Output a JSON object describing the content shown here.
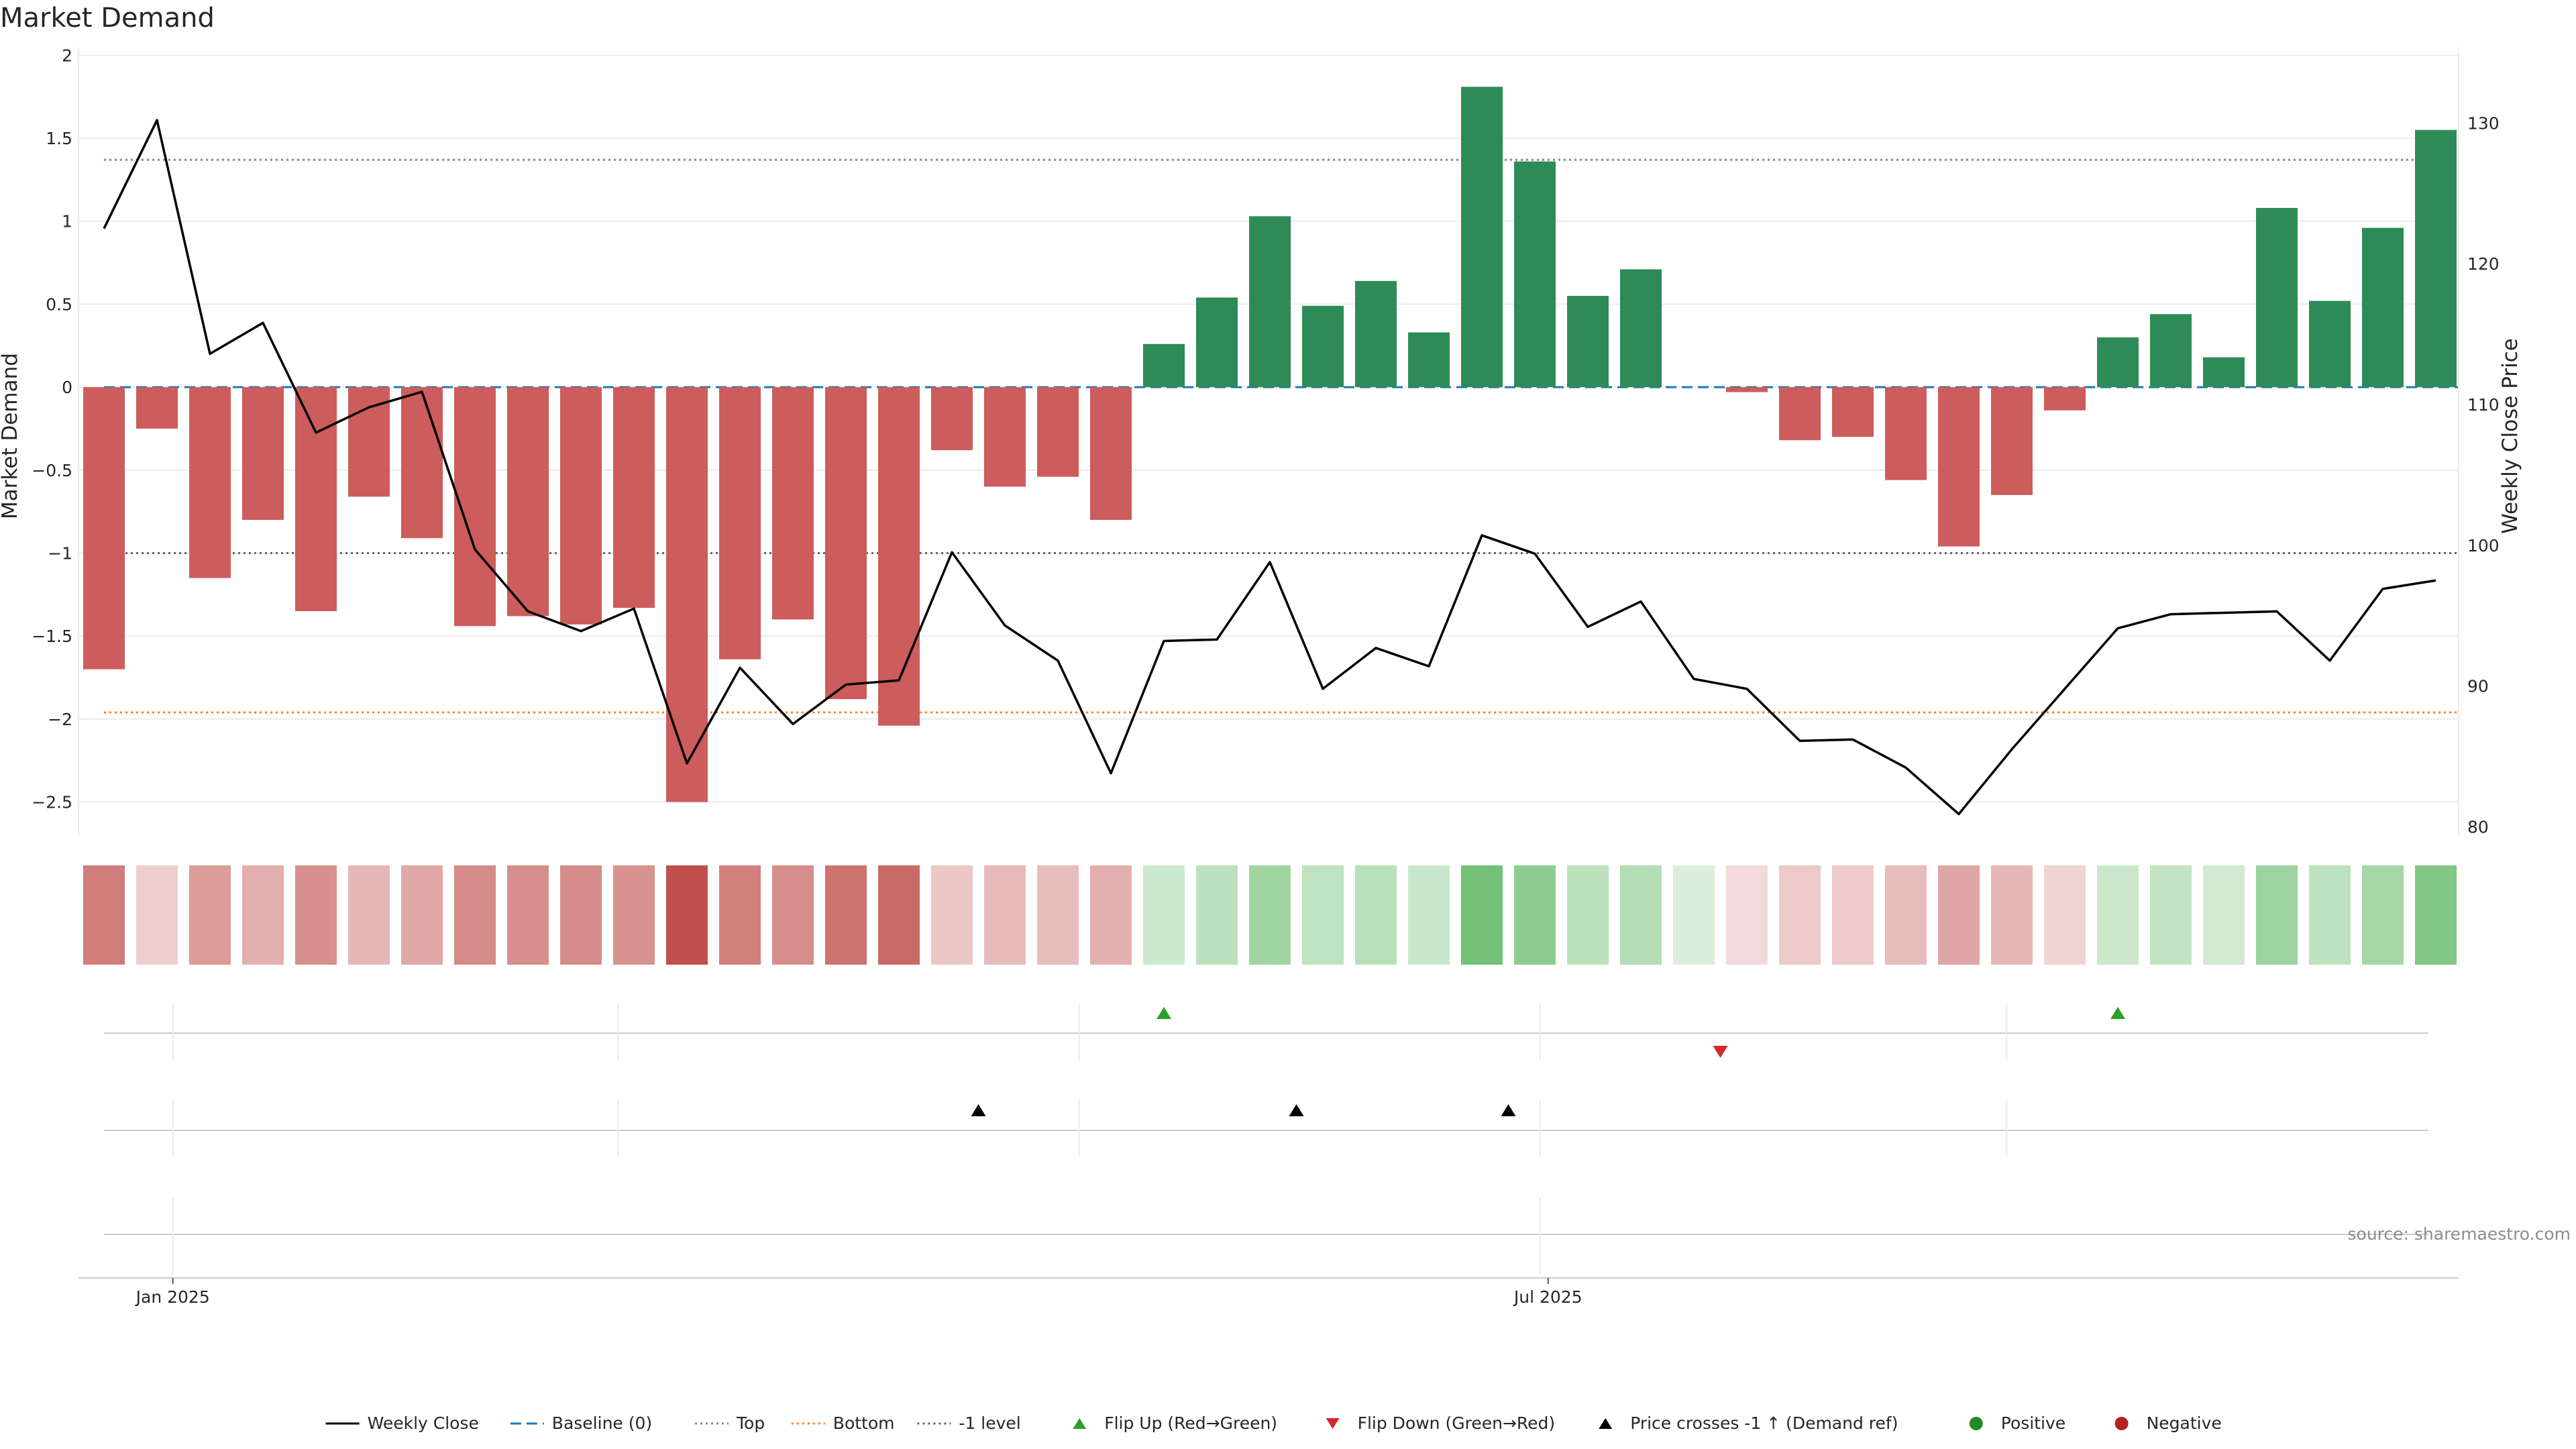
{
  "chart_data": {
    "type": "bar",
    "title": "Market Demand",
    "ylabel": "Market Demand",
    "y2label": "Weekly Close Price",
    "ylim": [
      -2.7,
      2.05
    ],
    "y2lim": [
      79.4,
      135.4
    ],
    "yticks": [
      2,
      1.5,
      1,
      0.5,
      0,
      -0.5,
      -1,
      -1.5,
      -2,
      -2.5
    ],
    "ytick_labels": [
      "2",
      "1.5",
      "1",
      "0.5",
      "0",
      "−0.5",
      "−1",
      "−1.5",
      "−2",
      "−2.5"
    ],
    "y2ticks": [
      130,
      120,
      110,
      100,
      90,
      80
    ],
    "xtick_labels": [
      {
        "label": "Jan 2025",
        "week": 1.3
      },
      {
        "label": "Jul 2025",
        "week": 27.25
      }
    ],
    "reference_lines": {
      "baseline": 0,
      "top": 1.37,
      "bottom": -1.96,
      "minus_one": -1
    },
    "colors": {
      "positive": "#2e8b57",
      "negative": "#cd5c5c",
      "price": "#000000",
      "baseline": "#1f77b4",
      "top": "#7f7fbf",
      "bottom": "#ff7f0e",
      "minus_one": "#666666",
      "flip_up": "#2ca02c",
      "flip_down": "#d62728",
      "cross": "#000000",
      "grid": "#ebebeb",
      "strip_axis": "#cccccc"
    },
    "series": [
      {
        "name": "Market Demand",
        "values": [
          -1.7,
          -0.25,
          -1.15,
          -0.8,
          -1.35,
          -0.66,
          -0.91,
          -1.44,
          -1.38,
          -1.43,
          -1.33,
          -2.5,
          -1.64,
          -1.4,
          -1.88,
          -2.04,
          -0.38,
          -0.6,
          -0.54,
          -0.8,
          0.26,
          0.54,
          1.03,
          0.49,
          0.64,
          0.33,
          1.81,
          1.36,
          0.55,
          0.71,
          0.0,
          -0.03,
          -0.32,
          -0.3,
          -0.56,
          -0.96,
          -0.65,
          -0.14,
          0.3,
          0.44,
          0.18,
          1.08,
          0.52,
          0.96,
          1.55
        ]
      },
      {
        "name": "Weekly Close",
        "values": [
          122.5,
          130.2,
          113.6,
          115.8,
          108.0,
          109.8,
          110.9,
          99.7,
          95.3,
          93.9,
          95.5,
          84.5,
          91.3,
          87.3,
          90.1,
          90.4,
          99.5,
          94.3,
          91.8,
          83.8,
          93.2,
          93.3,
          98.8,
          89.8,
          92.7,
          91.4,
          100.7,
          99.4,
          94.2,
          96.0,
          90.5,
          89.8,
          86.1,
          86.2,
          84.2,
          80.9,
          85.5,
          89.8,
          94.1,
          95.1,
          95.2,
          95.3,
          91.8,
          96.9,
          97.5
        ]
      }
    ],
    "flip_up_weeks": [
      20,
      38
    ],
    "flip_down_weeks": [
      30.5
    ],
    "price_cross_weeks": [
      16.5,
      22.5,
      26.5
    ],
    "strip_vlines_weeks": [
      1.3,
      9.7,
      18.4,
      27.1,
      35.9
    ],
    "legend": [
      {
        "label": "Weekly Close",
        "marker": "solid-line"
      },
      {
        "label": "Baseline (0)",
        "marker": "dashed-line"
      },
      {
        "label": "Top",
        "marker": "dotted-line"
      },
      {
        "label": "Bottom",
        "marker": "dotted-line"
      },
      {
        "label": "-1 level",
        "marker": "dotted-line"
      },
      {
        "label": "Flip Up (Red→Green)",
        "marker": "triangle-up"
      },
      {
        "label": "Flip Down (Green→Red)",
        "marker": "triangle-down"
      },
      {
        "label": "Price crosses -1 ↑ (Demand ref)",
        "marker": "triangle-up"
      },
      {
        "label": "Positive",
        "marker": "circle"
      },
      {
        "label": "Negative",
        "marker": "circle"
      }
    ],
    "legend_position": "bottom-center",
    "source_text": "source: sharemaestro.com"
  }
}
